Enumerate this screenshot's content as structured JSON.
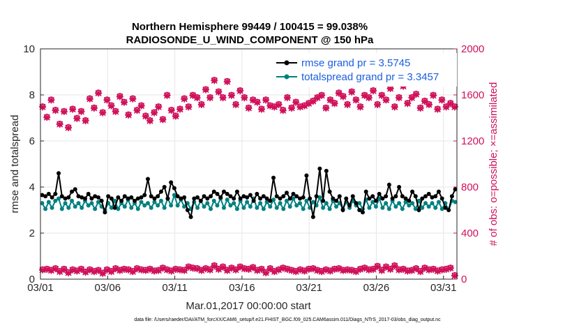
{
  "chart_data": {
    "type": "line",
    "title_line1": "Northern Hemisphere 99449 / 100415 = 99.038%",
    "title_line2": "RADIOSONDE_U_WIND_COMPONENT @ 150 hPa",
    "xlabel": "Mar.01,2017 00:00:00 start",
    "ylabel": "rmse and totalspread",
    "ylabel_right": "# of obs: o=possible; ×=assimilated",
    "footnote": "data file: /Users/raeder/DAI/ATM_forcXX/CAM6_setup/f.e21.FHIST_BGC.f09_025.CAM6assim.011/Diags_NTrS_2017-03/obs_diag_output.nc",
    "x_range_days": [
      0,
      31
    ],
    "x_ticks": [
      {
        "day": 0,
        "label": "03/01"
      },
      {
        "day": 5,
        "label": "03/06"
      },
      {
        "day": 10,
        "label": "03/11"
      },
      {
        "day": 15,
        "label": "03/16"
      },
      {
        "day": 20,
        "label": "03/21"
      },
      {
        "day": 25,
        "label": "03/26"
      },
      {
        "day": 30,
        "label": "03/31"
      }
    ],
    "ylim": [
      0,
      10
    ],
    "y_ticks": [
      "0",
      "2",
      "4",
      "6",
      "8",
      "10"
    ],
    "ylim_right": [
      0,
      2000
    ],
    "y_ticks_right": [
      "0",
      "400",
      "800",
      "1200",
      "1600",
      "2000"
    ],
    "colors": {
      "rmse": "#000000",
      "spread": "#008080",
      "obs": "#d0105a",
      "legend_text": "#1a5fe0"
    },
    "series": [
      {
        "name": "rmse",
        "legend": "rmse grand pr = 3.5745",
        "values": [
          3.65,
          3.6,
          3.7,
          3.55,
          3.7,
          4.6,
          3.6,
          3.5,
          3.55,
          3.8,
          3.9,
          3.6,
          3.55,
          3.5,
          3.7,
          3.5,
          3.6,
          3.55,
          3.4,
          2.9,
          3.6,
          3.5,
          3.1,
          3.55,
          3.4,
          3.6,
          3.5,
          3.55,
          3.4,
          3.5,
          3.55,
          3.65,
          4.35,
          3.6,
          3.5,
          3.6,
          3.8,
          4.0,
          3.5,
          4.2,
          3.95,
          3.6,
          3.5,
          3.55,
          3.0,
          2.7,
          3.5,
          3.55,
          3.4,
          3.6,
          3.5,
          3.6,
          3.8,
          3.7,
          3.55,
          3.8,
          3.7,
          3.6,
          3.5,
          3.8,
          3.5,
          3.6,
          3.55,
          3.65,
          3.4,
          3.7,
          3.5,
          3.6,
          3.5,
          3.4,
          4.4,
          3.6,
          3.5,
          3.6,
          3.75,
          3.5,
          3.7,
          3.6,
          3.5,
          3.55,
          4.5,
          3.5,
          2.7,
          3.6,
          4.8,
          3.4,
          4.7,
          3.8,
          3.5,
          3.4,
          3.6,
          3.0,
          3.5,
          3.2,
          3.6,
          3.3,
          3.0,
          2.9,
          3.8,
          3.5,
          3.6,
          3.4,
          3.7,
          3.5,
          3.6,
          4.1,
          3.5,
          3.6,
          4.0,
          3.6,
          3.5,
          3.4,
          3.8,
          3.6,
          3.0,
          3.5,
          3.6,
          3.7,
          3.55,
          3.6,
          3.8,
          3.5,
          3.1,
          3.0,
          3.6,
          3.9
        ]
      },
      {
        "name": "totalspread",
        "legend": "totalspread grand pr = 3.3457",
        "values": [
          3.3,
          3.05,
          3.35,
          3.1,
          3.4,
          3.5,
          3.05,
          3.3,
          3.1,
          3.4,
          3.15,
          3.3,
          3.1,
          3.4,
          3.2,
          3.3,
          3.05,
          3.35,
          3.15,
          3.0,
          3.3,
          3.1,
          3.4,
          3.05,
          3.3,
          3.15,
          3.45,
          3.1,
          3.3,
          3.05,
          3.35,
          3.2,
          3.3,
          3.1,
          3.35,
          3.2,
          3.4,
          3.1,
          3.5,
          3.2,
          3.65,
          3.2,
          3.45,
          3.15,
          3.3,
          3.05,
          3.35,
          3.1,
          3.4,
          3.15,
          3.3,
          3.05,
          3.4,
          3.2,
          3.5,
          3.1,
          3.45,
          3.2,
          3.3,
          3.05,
          3.4,
          3.1,
          3.35,
          3.15,
          3.5,
          3.1,
          3.3,
          3.05,
          3.35,
          3.15,
          3.45,
          3.1,
          3.3,
          3.05,
          3.4,
          3.15,
          3.5,
          3.2,
          3.3,
          3.05,
          3.4,
          3.1,
          3.35,
          3.2,
          3.55,
          3.1,
          3.3,
          3.05,
          3.4,
          3.15,
          3.3,
          3.05,
          3.35,
          3.1,
          3.4,
          3.2,
          3.3,
          3.05,
          3.45,
          3.1,
          3.35,
          3.15,
          3.5,
          3.1,
          3.3,
          3.05,
          3.4,
          3.15,
          3.3,
          3.05,
          3.35,
          3.2,
          3.3,
          3.05,
          3.4,
          3.1,
          3.3,
          3.15,
          3.3,
          3.1,
          3.35,
          3.05,
          3.3,
          3.0,
          3.4,
          3.35
        ]
      },
      {
        "name": "possible",
        "marker": "o",
        "axis": "right",
        "values": [
          1500,
          1410,
          1560,
          1470,
          1350,
          1460,
          1320,
          1480,
          1400,
          1460,
          1380,
          1570,
          1490,
          1620,
          1450,
          1560,
          1510,
          1460,
          1590,
          1540,
          1430,
          1570,
          1470,
          1510,
          1420,
          1380,
          1450,
          1500,
          1390,
          1600,
          1470,
          1420,
          1480,
          1570,
          1500,
          1600,
          1580,
          1520,
          1650,
          1580,
          1730,
          1630,
          1580,
          1720,
          1600,
          1520,
          1640,
          1580,
          1490,
          1560,
          1540,
          1480,
          1560,
          1510,
          1500,
          1520,
          1470,
          1580,
          1490,
          1540,
          1500,
          1510,
          1530,
          1550,
          1580,
          1600,
          1490,
          1560,
          1530,
          1620,
          1590,
          1520,
          1630,
          1560,
          1500,
          1600,
          1580,
          1640,
          1520,
          1600,
          1560,
          1660,
          1500,
          1580,
          1680,
          1530,
          1580,
          1610,
          1490,
          1550,
          1520,
          1600,
          1480,
          1560,
          1500,
          1530,
          1500
        ]
      },
      {
        "name": "assimilated",
        "marker": "x",
        "axis": "right",
        "values": [
          1495,
          1405,
          1555,
          1465,
          1345,
          1455,
          1315,
          1475,
          1395,
          1455,
          1375,
          1565,
          1485,
          1615,
          1445,
          1555,
          1505,
          1455,
          1585,
          1535,
          1425,
          1565,
          1465,
          1505,
          1415,
          1375,
          1445,
          1495,
          1385,
          1595,
          1465,
          1415,
          1475,
          1565,
          1495,
          1595,
          1575,
          1515,
          1645,
          1575,
          1725,
          1625,
          1575,
          1715,
          1595,
          1515,
          1635,
          1575,
          1485,
          1555,
          1535,
          1475,
          1555,
          1505,
          1495,
          1515,
          1465,
          1575,
          1485,
          1535,
          1495,
          1505,
          1525,
          1545,
          1575,
          1595,
          1485,
          1555,
          1525,
          1615,
          1585,
          1515,
          1625,
          1555,
          1495,
          1595,
          1575,
          1635,
          1515,
          1595,
          1555,
          1655,
          1495,
          1575,
          1675,
          1525,
          1575,
          1605,
          1485,
          1545,
          1515,
          1595,
          1475,
          1555,
          1495,
          1525,
          1495
        ]
      },
      {
        "name": "possible_lower",
        "marker": "o",
        "axis": "right",
        "values": [
          85,
          90,
          80,
          95,
          70,
          90,
          60,
          85,
          75,
          90,
          65,
          85,
          70,
          80,
          55,
          85,
          70,
          95,
          80,
          90,
          85,
          70,
          95,
          85,
          80,
          90,
          75,
          80,
          100,
          85,
          75,
          90,
          85,
          80,
          110,
          100,
          95,
          80,
          95,
          85,
          120,
          90,
          110,
          80,
          100,
          85,
          110,
          95,
          90,
          105,
          80,
          90,
          60,
          95,
          70,
          85,
          100,
          90,
          80,
          70,
          85,
          75,
          90,
          95,
          80,
          70,
          85,
          75,
          90,
          95,
          80,
          85,
          80,
          70,
          90,
          100,
          85,
          90,
          115,
          80,
          110,
          90,
          120,
          85,
          90,
          75,
          80,
          95,
          70,
          100,
          85,
          90,
          75,
          85,
          90,
          100,
          35
        ]
      },
      {
        "name": "assimilated_lower",
        "marker": "x",
        "axis": "right",
        "values": [
          80,
          85,
          75,
          90,
          65,
          85,
          55,
          80,
          70,
          85,
          60,
          80,
          65,
          75,
          50,
          80,
          65,
          90,
          75,
          85,
          80,
          65,
          90,
          80,
          75,
          85,
          70,
          75,
          95,
          80,
          70,
          85,
          80,
          75,
          105,
          95,
          90,
          75,
          90,
          80,
          115,
          85,
          105,
          75,
          95,
          80,
          105,
          90,
          85,
          100,
          75,
          85,
          55,
          90,
          65,
          80,
          95,
          85,
          75,
          65,
          80,
          70,
          85,
          90,
          75,
          65,
          80,
          70,
          85,
          90,
          75,
          80,
          75,
          65,
          85,
          95,
          80,
          85,
          110,
          75,
          105,
          85,
          115,
          80,
          85,
          70,
          75,
          90,
          65,
          95,
          80,
          85,
          70,
          80,
          85,
          95,
          30
        ]
      }
    ]
  }
}
